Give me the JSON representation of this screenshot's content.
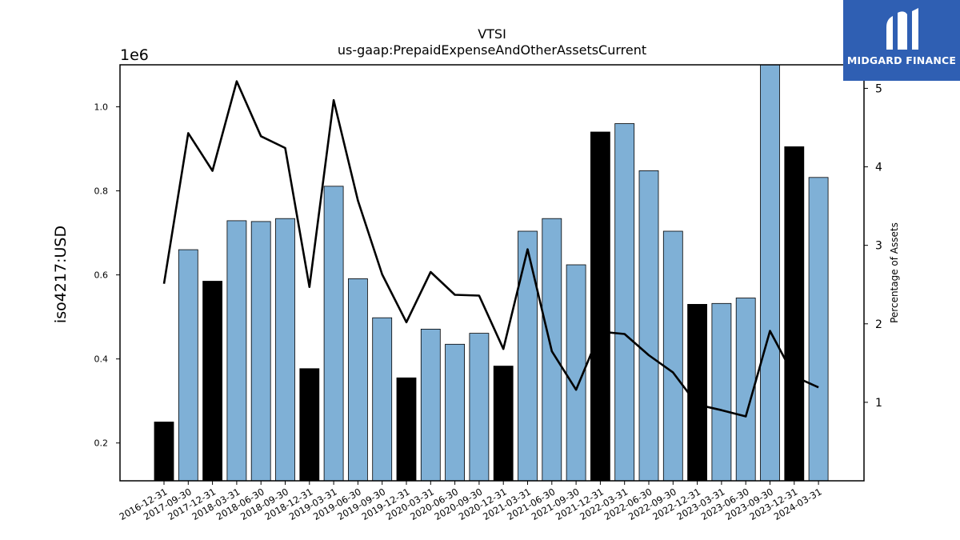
{
  "chart_data": {
    "type": "bar",
    "title": "VTSI",
    "subtitle": "us-gaap:PrepaidExpenseAndOtherAssetsCurrent",
    "ylabel": "iso4217:USD",
    "y_multiplier_label": "1e6",
    "y2label": "Percentage of Assets",
    "ylim": [
      0.11,
      1.1
    ],
    "y2lim": [
      0.0,
      5.3
    ],
    "yticks": [
      0.2,
      0.4,
      0.6,
      0.8,
      1.0
    ],
    "yticks_labels": [
      "0.2",
      "0.4",
      "0.6",
      "0.8",
      "1.0"
    ],
    "y2ticks": [
      1,
      2,
      3,
      4,
      5
    ],
    "y2ticks_labels": [
      "1",
      "2",
      "3",
      "4",
      "5"
    ],
    "categories": [
      "2016-12-31",
      "2017-09-30",
      "2017-12-31",
      "2018-03-31",
      "2018-06-30",
      "2018-09-30",
      "2018-12-31",
      "2019-03-31",
      "2019-06-30",
      "2019-09-30",
      "2019-12-31",
      "2020-03-31",
      "2020-06-30",
      "2020-09-30",
      "2020-12-31",
      "2021-03-31",
      "2021-06-30",
      "2021-09-30",
      "2021-12-31",
      "2022-03-31",
      "2022-06-30",
      "2022-09-30",
      "2022-12-31",
      "2023-03-31",
      "2023-06-30",
      "2023-09-30",
      "2023-12-31",
      "2024-03-31"
    ],
    "series": [
      {
        "values": [
          0.25,
          0.66,
          0.585,
          0.729,
          0.727,
          0.734,
          0.377,
          0.811,
          0.591,
          0.498,
          0.355,
          0.471,
          0.435,
          0.461,
          0.383,
          0.704,
          0.734,
          0.624,
          0.94,
          0.96,
          0.848,
          0.704,
          0.53,
          0.532,
          0.545,
          1.1,
          0.905,
          0.832
        ],
        "highlight": [
          true,
          false,
          true,
          false,
          false,
          false,
          true,
          false,
          false,
          false,
          true,
          false,
          false,
          false,
          true,
          false,
          false,
          false,
          true,
          false,
          false,
          false,
          true,
          false,
          false,
          false,
          true,
          false
        ]
      },
      {
        "axis": "right",
        "type": "line",
        "values": [
          2.51,
          4.43,
          3.95,
          5.09,
          4.39,
          4.24,
          2.47,
          4.85,
          3.57,
          2.63,
          2.02,
          2.66,
          2.37,
          2.36,
          1.68,
          2.95,
          1.65,
          1.16,
          1.9,
          1.87,
          1.6,
          1.38,
          0.97,
          0.9,
          0.82,
          1.91,
          1.33,
          1.19
        ]
      }
    ],
    "colors": {
      "bar": "#7fb0d6",
      "highlight": "#000000",
      "line": "#000000"
    },
    "grid": false,
    "legend": "none"
  },
  "logo": {
    "text": "MIDGARD FINANCE"
  }
}
